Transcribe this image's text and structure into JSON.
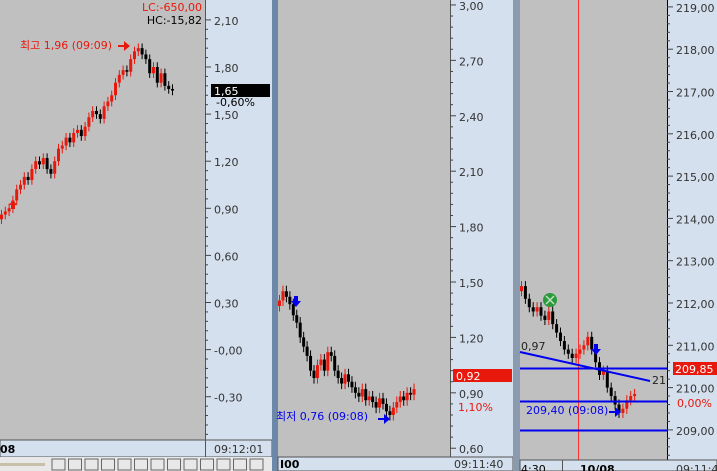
{
  "colors": {
    "up": "#e8180c",
    "down": "#000000",
    "chart_bg": "#c0c0c0",
    "axis_bg": "#d4e0ee",
    "line": "#0000ee",
    "marker": "#0000ee"
  },
  "panel1": {
    "header": {
      "lc": "LC:-650,00",
      "hc": "HC:-15,82"
    },
    "ticks": [
      "2,10",
      "1,80",
      "1,50",
      "1,20",
      "0,90",
      "0,60",
      "0,30",
      "-0,00",
      "-0,30"
    ],
    "tick_values": [
      2.1,
      1.8,
      1.5,
      1.2,
      0.9,
      0.6,
      0.3,
      0.0,
      -0.3
    ],
    "high_label": "최고 1,96 (09:09)",
    "price_tag": "1,65",
    "change": "-0,60%",
    "date_label": "08",
    "time_label": "09:12:01",
    "closes": [
      0.86,
      0.88,
      0.9,
      0.95,
      1.02,
      1.05,
      1.1,
      1.08,
      1.15,
      1.2,
      1.18,
      1.22,
      1.15,
      1.12,
      1.2,
      1.28,
      1.3,
      1.35,
      1.32,
      1.38,
      1.4,
      1.36,
      1.42,
      1.48,
      1.52,
      1.5,
      1.47,
      1.55,
      1.58,
      1.62,
      1.7,
      1.75,
      1.78,
      1.77,
      1.85,
      1.9,
      1.92,
      1.88,
      1.85,
      1.76,
      1.8,
      1.7,
      1.76,
      1.68,
      1.66,
      1.65
    ]
  },
  "panel2": {
    "ticks": [
      "3,00",
      "2,70",
      "2,40",
      "2,10",
      "1,80",
      "1,50",
      "1,20",
      "0,90",
      "0,60"
    ],
    "tick_values": [
      3.0,
      2.7,
      2.4,
      2.1,
      1.8,
      1.5,
      1.2,
      0.9,
      0.6
    ],
    "low_label": "최저 0,76 (09:08)",
    "price_tag": "0,92",
    "change": "1,10%",
    "date_label": "I00",
    "time_label": "09:11:40",
    "closes": [
      1.4,
      1.45,
      1.42,
      1.38,
      1.32,
      1.28,
      1.2,
      1.15,
      1.1,
      1.02,
      0.98,
      1.05,
      1.08,
      1.02,
      1.12,
      1.1,
      1.02,
      0.98,
      0.95,
      1.0,
      0.96,
      0.93,
      0.9,
      0.88,
      0.92,
      0.86,
      0.88,
      0.85,
      0.82,
      0.87,
      0.84,
      0.8,
      0.78,
      0.82,
      0.85,
      0.88,
      0.86,
      0.9,
      0.89,
      0.92
    ]
  },
  "panel3": {
    "ticks": [
      "219,00",
      "218,00",
      "217,00",
      "216,00",
      "215,00",
      "214,00",
      "213,00",
      "212,00",
      "211,00",
      "210,00",
      "209,00"
    ],
    "tick_values": [
      219,
      218,
      217,
      216,
      215,
      214,
      213,
      212,
      211,
      210,
      209
    ],
    "line_label_left": "0,97",
    "line_label_right": "21",
    "low_label": "209,40 (09:08)",
    "price_tag": "209,85",
    "change": "0,00%",
    "time_left": "4:30",
    "date_label": "10/08",
    "time_label": "09:11:4",
    "closes": [
      212.4,
      212.1,
      211.9,
      211.8,
      211.9,
      211.7,
      211.6,
      211.8,
      211.5,
      211.3,
      211.1,
      210.9,
      210.8,
      210.7,
      210.8,
      210.9,
      211.0,
      211.2,
      210.9,
      210.6,
      210.3,
      210.4,
      210.0,
      209.8,
      209.6,
      209.4,
      209.5,
      209.7,
      209.8,
      209.85
    ]
  },
  "toolbar": {
    "icons": [
      "window-icon",
      "copy-window-icon",
      "dotted-line-icon",
      "trendline-icon",
      "wave-icon",
      "zigzag-icon",
      "fan-icon",
      "box-icon",
      "chart-icon",
      "zoom-icon",
      "zoom-out-icon",
      "zoom-in-icon",
      "warning-icon"
    ],
    "zoom_out": "−",
    "zoom_in": "+",
    "warn": "A"
  }
}
